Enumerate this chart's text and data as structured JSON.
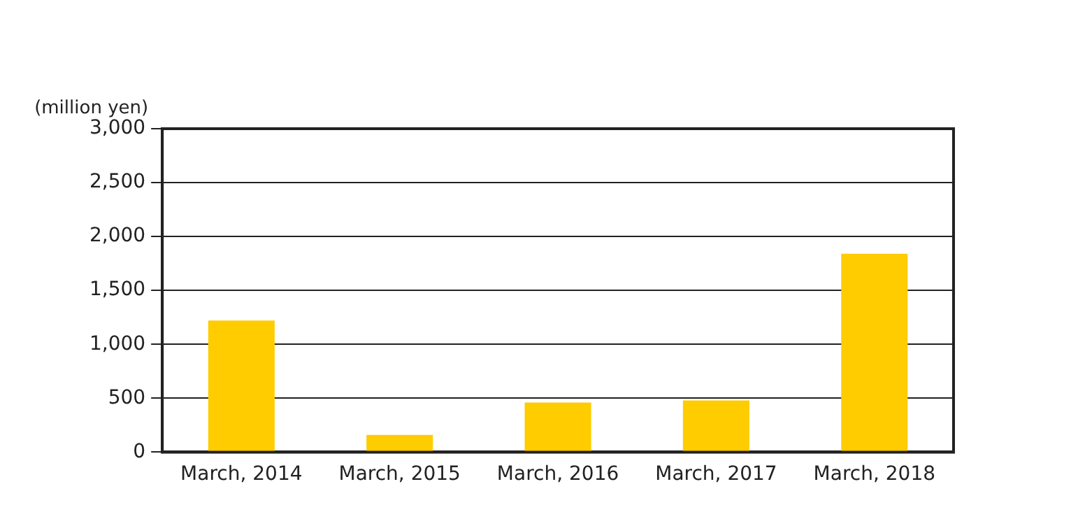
{
  "chart_data": {
    "type": "bar",
    "ylabel": "(million yen)",
    "categories": [
      "March, 2014",
      "March, 2015",
      "March, 2016",
      "March, 2017",
      "March, 2018"
    ],
    "values": [
      1220,
      160,
      460,
      480,
      1840
    ],
    "color": "#ffcc00",
    "ylim": [
      0,
      3000
    ],
    "yticks": [
      0,
      500,
      {
        "value": 1000,
        "label": "1,000"
      },
      {
        "value": 1500,
        "label": "1,500"
      },
      {
        "value": 2000,
        "label": "2,000"
      },
      {
        "value": 2500,
        "label": "2,500"
      },
      {
        "value": 3000,
        "label": "3,000"
      }
    ],
    "grid": "y",
    "legend": false
  }
}
